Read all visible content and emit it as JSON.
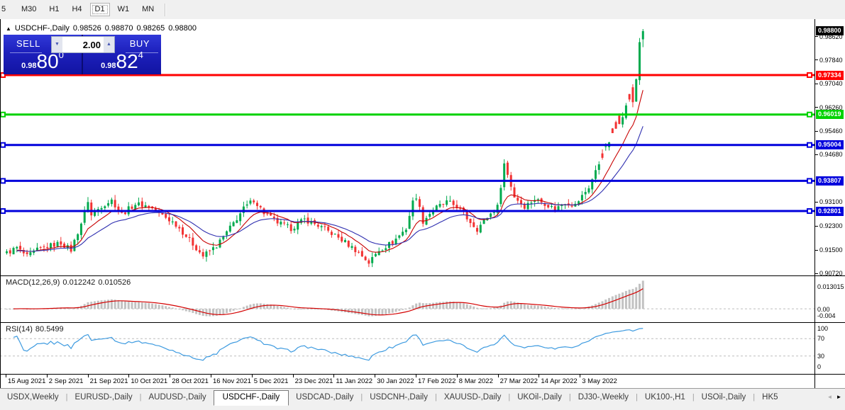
{
  "toolbar": {
    "timeframes": [
      {
        "label": "5",
        "partial": true,
        "active": false
      },
      {
        "label": "M30",
        "active": false
      },
      {
        "label": "H1",
        "active": false
      },
      {
        "label": "H4",
        "active": false
      },
      {
        "label": "D1",
        "active": true
      },
      {
        "label": "W1",
        "active": false
      },
      {
        "label": "MN",
        "active": false
      }
    ]
  },
  "header": {
    "collapse_icon": "▲",
    "symbol": "USDCHF-,Daily",
    "open": "0.98526",
    "high": "0.98870",
    "low": "0.98265",
    "close": "0.98800"
  },
  "trade_panel": {
    "sell_label": "SELL",
    "buy_label": "BUY",
    "volume": "2.00",
    "down_arrow": "▼",
    "up_arrow": "▲",
    "sell_price_prefix": "0.98",
    "sell_price_big": "80",
    "sell_price_sup": "0",
    "buy_price_prefix": "0.98",
    "buy_price_big": "82",
    "buy_price_sup": "4"
  },
  "price_axis": {
    "ticks": [
      {
        "text": "0.98620",
        "value": 0.9862
      },
      {
        "text": "0.97840",
        "value": 0.9784
      },
      {
        "text": "0.97040",
        "value": 0.9704
      },
      {
        "text": "0.96260",
        "value": 0.9626
      },
      {
        "text": "0.95460",
        "value": 0.9546
      },
      {
        "text": "0.94680",
        "value": 0.9468
      },
      {
        "text": "0.93100",
        "value": 0.931
      },
      {
        "text": "0.92300",
        "value": 0.923
      },
      {
        "text": "0.91500",
        "value": 0.915
      },
      {
        "text": "0.90720",
        "value": 0.9072
      }
    ],
    "badges": [
      {
        "text": "0.98800",
        "value": 0.988,
        "bg": "#000000"
      },
      {
        "text": "0.97334",
        "value": 0.97334,
        "bg": "#ff0000"
      },
      {
        "text": "0.96019",
        "value": 0.96019,
        "bg": "#00d200"
      },
      {
        "text": "0.95004",
        "value": 0.95004,
        "bg": "#0000dc"
      },
      {
        "text": "0.93807",
        "value": 0.93807,
        "bg": "#0000dc"
      },
      {
        "text": "0.92801",
        "value": 0.92801,
        "bg": "#0000dc"
      }
    ]
  },
  "macd_panel": {
    "name": "MACD(12,26,9)",
    "value_main": "0.012242",
    "value_signal": "0.010526",
    "axis": [
      "0.013015",
      "0.00",
      "-0.004"
    ]
  },
  "rsi_panel": {
    "name": "RSI(14)",
    "value": "80.5499",
    "axis": [
      "100",
      "70",
      "30",
      "0"
    ]
  },
  "date_axis": [
    "15 Aug 2021",
    "2 Sep 2021",
    "21 Sep 2021",
    "10 Oct 2021",
    "28 Oct 2021",
    "16 Nov 2021",
    "5 Dec 2021",
    "23 Dec 2021",
    "11 Jan 2022",
    "30 Jan 2022",
    "17 Feb 2022",
    "8 Mar 2022",
    "27 Mar 2022",
    "14 Apr 2022",
    "3 May 2022"
  ],
  "tabs": {
    "items": [
      {
        "label": "USDX,Weekly",
        "active": false
      },
      {
        "label": "EURUSD-,Daily",
        "active": false
      },
      {
        "label": "AUDUSD-,Daily",
        "active": false
      },
      {
        "label": "USDCHF-,Daily",
        "active": true
      },
      {
        "label": "USDCAD-,Daily",
        "active": false
      },
      {
        "label": "USDCNH-,Daily",
        "active": false
      },
      {
        "label": "XAUUSD-,Daily",
        "active": false
      },
      {
        "label": "UKOil-,Daily",
        "active": false
      },
      {
        "label": "DJ30-,Weekly",
        "active": false
      },
      {
        "label": "UK100-,H1",
        "active": false
      },
      {
        "label": "USOil-,Daily",
        "active": false
      },
      {
        "label": "HK5",
        "active": false,
        "truncated": true
      }
    ],
    "scroll_left": "◄",
    "scroll_right": "►"
  },
  "chart_data": {
    "type": "candlestick",
    "symbol": "USDCHF",
    "timeframe": "Daily",
    "bars": 189,
    "price_range": [
      0.9063,
      0.992
    ],
    "last_candle": {
      "open": 0.98526,
      "high": 0.9887,
      "low": 0.98265,
      "close": 0.988
    },
    "close_anchors": [
      [
        0,
        0.914
      ],
      [
        3,
        0.9158
      ],
      [
        6,
        0.9128
      ],
      [
        9,
        0.915
      ],
      [
        12,
        0.9162
      ],
      [
        16,
        0.9174
      ],
      [
        19,
        0.915
      ],
      [
        22,
        0.924
      ],
      [
        24,
        0.9315
      ],
      [
        25,
        0.9265
      ],
      [
        28,
        0.9298
      ],
      [
        31,
        0.9316
      ],
      [
        34,
        0.927
      ],
      [
        38,
        0.9304
      ],
      [
        42,
        0.9296
      ],
      [
        46,
        0.9266
      ],
      [
        50,
        0.9236
      ],
      [
        54,
        0.9184
      ],
      [
        58,
        0.913
      ],
      [
        62,
        0.9164
      ],
      [
        66,
        0.9224
      ],
      [
        70,
        0.9288
      ],
      [
        73,
        0.9318
      ],
      [
        76,
        0.9274
      ],
      [
        80,
        0.9242
      ],
      [
        84,
        0.9222
      ],
      [
        88,
        0.9252
      ],
      [
        92,
        0.9232
      ],
      [
        96,
        0.9206
      ],
      [
        100,
        0.9176
      ],
      [
        104,
        0.9142
      ],
      [
        107,
        0.9108
      ],
      [
        110,
        0.915
      ],
      [
        114,
        0.9176
      ],
      [
        118,
        0.9222
      ],
      [
        120,
        0.931
      ],
      [
        121,
        0.933
      ],
      [
        123,
        0.9246
      ],
      [
        126,
        0.9286
      ],
      [
        130,
        0.931
      ],
      [
        133,
        0.9296
      ],
      [
        136,
        0.9256
      ],
      [
        139,
        0.922
      ],
      [
        142,
        0.926
      ],
      [
        145,
        0.9294
      ],
      [
        147,
        0.9438
      ],
      [
        150,
        0.9328
      ],
      [
        153,
        0.9296
      ],
      [
        156,
        0.932
      ],
      [
        159,
        0.9306
      ],
      [
        162,
        0.9286
      ],
      [
        165,
        0.931
      ],
      [
        168,
        0.93
      ],
      [
        170,
        0.933
      ],
      [
        172,
        0.936
      ],
      [
        174,
        0.9412
      ],
      [
        176,
        0.9465
      ],
      [
        178,
        0.9512
      ],
      [
        180,
        0.9555
      ],
      [
        182,
        0.9602
      ],
      [
        184,
        0.9655
      ],
      [
        185,
        0.9638
      ],
      [
        186,
        0.972
      ],
      [
        187,
        0.9845
      ],
      [
        188,
        0.988
      ]
    ],
    "levels": [
      {
        "price": 0.97334,
        "color": "#ff0000"
      },
      {
        "price": 0.96019,
        "color": "#00d200"
      },
      {
        "price": 0.95004,
        "color": "#0000dc"
      },
      {
        "price": 0.93807,
        "color": "#0000dc"
      },
      {
        "price": 0.92801,
        "color": "#0000dc"
      }
    ],
    "indicators": {
      "macd": {
        "params": [
          12,
          26,
          9
        ],
        "value_main": 0.012242,
        "value_signal": 0.010526,
        "axis_max": 0.013015,
        "axis_min": -0.004,
        "histogram_color": "#c2c2c2",
        "signal_color": "#d40000"
      },
      "rsi": {
        "period": 14,
        "value": 80.5499,
        "levels": [
          70,
          30
        ],
        "line_color": "#3e9be0"
      },
      "ma_fast": {
        "period": 10,
        "color": "#c80000"
      },
      "ma_slow": {
        "period": 22,
        "color": "#3030b0"
      }
    },
    "colors": {
      "up_candle": "#00aa4e",
      "down_candle": "#f23232",
      "grid_dash": "#bdbdbd"
    }
  }
}
